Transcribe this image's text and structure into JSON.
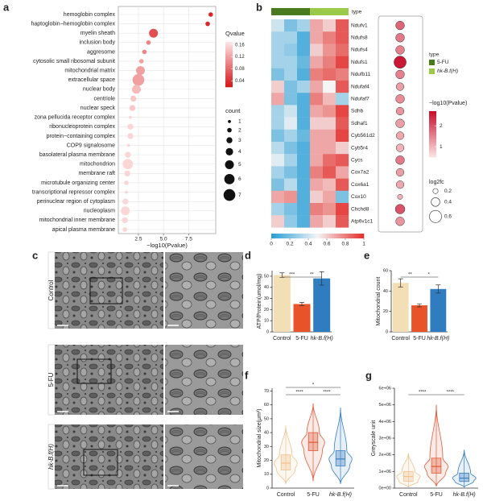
{
  "chart_data": [
    {
      "panel": "a",
      "type": "dot",
      "categories": [
        "hemoglobin complex",
        "haptoglobin−hemoglobin complex",
        "myelin sheath",
        "inclusion body",
        "aggresome",
        "cytosolic small ribosomal subunit",
        "mitochondrial matrix",
        "extracellular space",
        "nuclear body",
        "centriole",
        "nuclear speck",
        "zona pellucida receptor complex",
        "ribonucleoprotein complex",
        "protein−containing complex",
        "COP9 signalosome",
        "basolateral plasma membrane",
        "mitochondrion",
        "membrane raft",
        "microtubule organizing center",
        "transcriptional repressor complex",
        "perinuclear region of cytoplasm",
        "nucleoplasm",
        "mitochondrial inner membrane",
        "apical plasma membrane"
      ],
      "label_colors": [
        "#222222",
        "#222222",
        "#222222",
        "#222222",
        "#222222",
        "#222222",
        "#e41a1c",
        "#222222",
        "#222222",
        "#222222",
        "#222222",
        "#222222",
        "#222222",
        "#222222",
        "#222222",
        "#222222",
        "#e41a1c",
        "#222222",
        "#222222",
        "#222222",
        "#222222",
        "#222222",
        "#e41a1c",
        "#222222"
      ],
      "values": [
        9.7,
        9.4,
        4.0,
        3.5,
        3.1,
        2.8,
        2.7,
        2.5,
        2.3,
        2.0,
        1.9,
        1.7,
        1.7,
        1.7,
        1.5,
        1.45,
        1.45,
        1.4,
        1.3,
        1.3,
        1.2,
        1.2,
        1.15,
        1.15
      ],
      "counts": [
        2,
        2,
        5,
        2,
        2,
        2,
        5,
        7,
        5,
        3,
        3,
        1,
        3,
        3,
        1,
        3,
        6,
        3,
        2,
        1,
        3,
        5,
        3,
        2
      ],
      "qvalues": [
        0.03,
        0.03,
        0.06,
        0.1,
        0.1,
        0.12,
        0.12,
        0.12,
        0.14,
        0.15,
        0.15,
        0.16,
        0.16,
        0.16,
        0.16,
        0.16,
        0.16,
        0.16,
        0.16,
        0.16,
        0.16,
        0.16,
        0.16,
        0.16
      ],
      "xlabel": "−log10(Pvalue)",
      "xlim": [
        0.5,
        10.2
      ],
      "xticks": [
        {
          "value": 2.5,
          "label": "2.5"
        },
        {
          "value": 5.0,
          "label": "5.0"
        },
        {
          "value": 7.5,
          "label": "7.5"
        }
      ],
      "grid": true,
      "color_legend": {
        "title": "Qvalue",
        "lim": [
          0.02,
          0.17
        ],
        "ticks": [
          0.04,
          0.08,
          0.12,
          0.16
        ],
        "colors": [
          "#d7191c",
          "#fde3e3"
        ]
      },
      "size_legend": {
        "title": "count",
        "values": [
          1,
          2,
          3,
          4,
          5,
          6,
          7
        ]
      }
    },
    {
      "panel": "b",
      "type": "heatmap",
      "rows": [
        "Ndufv1",
        "Ndufs8",
        "Ndufs4",
        "Ndufs1",
        "Ndufb11",
        "Ndufaf4",
        "Ndufaf7",
        "Sdhb",
        "Sdhaf1",
        "Cyb561d2",
        "Cyb5r4",
        "Cycs",
        "Cox7a2",
        "Cox6a1",
        "Cox10",
        "Chchd8",
        "Atp6v1c1"
      ],
      "values": [
        [
          0.4,
          0.2,
          0.3,
          0.7,
          0.6,
          0.9
        ],
        [
          0.3,
          0.3,
          0.1,
          0.7,
          0.8,
          0.9
        ],
        [
          0.3,
          0.25,
          0.1,
          0.6,
          0.75,
          0.85
        ],
        [
          0.3,
          0.3,
          0.15,
          0.7,
          0.8,
          0.95
        ],
        [
          0.2,
          0.3,
          0.1,
          0.8,
          0.85,
          0.8
        ],
        [
          0.6,
          0.2,
          0.3,
          0.7,
          0.5,
          0.9
        ],
        [
          0.7,
          0.2,
          0.1,
          0.8,
          0.65,
          0.3
        ],
        [
          0.3,
          0.4,
          0.1,
          0.7,
          0.75,
          0.95
        ],
        [
          0.3,
          0.45,
          0.1,
          0.6,
          0.6,
          0.9
        ],
        [
          0.2,
          0.3,
          0.15,
          0.7,
          0.7,
          0.95
        ],
        [
          0.35,
          0.2,
          0.1,
          0.7,
          0.7,
          0.6
        ],
        [
          0.45,
          0.3,
          0.1,
          0.7,
          0.85,
          0.9
        ],
        [
          0.3,
          0.2,
          0.1,
          0.8,
          0.9,
          0.7
        ],
        [
          0.2,
          0.35,
          0.1,
          0.7,
          0.65,
          0.9
        ],
        [
          0.7,
          0.75,
          0.1,
          0.6,
          0.7,
          0.2
        ],
        [
          0.3,
          0.2,
          0.1,
          0.8,
          0.75,
          0.95
        ],
        [
          0.6,
          0.25,
          0.1,
          0.7,
          0.6,
          0.9
        ]
      ],
      "scale": {
        "lim": [
          0,
          1
        ],
        "ticks": [
          0,
          0.2,
          0.4,
          0.6,
          0.8,
          1
        ],
        "colors": [
          "#2b9fd6",
          "#f5f5f5",
          "#e3322f"
        ]
      },
      "annotation": {
        "title": "type",
        "groups": [
          "5-FU",
          "hk-B.f(H)"
        ],
        "colors": [
          "#4a7a1f",
          "#9bc94a"
        ],
        "columns": [
          0,
          0,
          0,
          1,
          1,
          1
        ]
      },
      "dots": {
        "pvalue": [
          1.8,
          1.6,
          1.5,
          2.6,
          1.5,
          1.2,
          1.4,
          1.3,
          1.2,
          1.1,
          1.0,
          1.6,
          1.2,
          1.1,
          1.0,
          2.0,
          1.3
        ],
        "log2fc": [
          0.4,
          0.4,
          0.4,
          0.6,
          0.4,
          0.35,
          0.4,
          0.35,
          0.4,
          0.35,
          0.35,
          0.4,
          0.35,
          0.35,
          0.2,
          0.45,
          0.4
        ],
        "pvalue_title": "−log10(Pvalue)",
        "pvalue_lim": [
          0.5,
          2.7
        ],
        "pvalue_ticks": [
          1,
          2
        ],
        "pvalue_colors": [
          "#fde0e0",
          "#c8102e"
        ],
        "log2fc_title": "log2fc",
        "log2fc_ticks": [
          0.2,
          0.4,
          0.6
        ]
      }
    },
    {
      "panel": "c",
      "type": "micrograph",
      "rows": [
        "Control",
        "5-FU",
        "hk-B.f(H)"
      ],
      "italic": [
        false,
        false,
        true
      ]
    },
    {
      "panel": "d",
      "type": "bar",
      "categories": [
        "Control",
        "5-FU",
        "hk-B.f(H)"
      ],
      "italic": [
        false,
        false,
        true
      ],
      "values": [
        51,
        25,
        48
      ],
      "errors": [
        2,
        1.5,
        6
      ],
      "colors": [
        "#f3dfb5",
        "#e8532a",
        "#2f7dc0"
      ],
      "ylabel": "ATP/Protein(umol/mg)",
      "ylim": [
        0,
        55
      ],
      "yticks": [
        0,
        10,
        20,
        30,
        40,
        50
      ],
      "annotations": [
        {
          "label": "***",
          "pair": [
            0,
            1
          ]
        },
        {
          "label": "**",
          "pair": [
            1,
            2
          ]
        }
      ]
    },
    {
      "panel": "e",
      "type": "bar",
      "categories": [
        "Control",
        "5-FU",
        "hk-B.f(H)"
      ],
      "italic": [
        false,
        false,
        true
      ],
      "values": [
        48,
        26,
        42
      ],
      "errors": [
        4,
        1.5,
        4
      ],
      "colors": [
        "#f3dfb5",
        "#e8532a",
        "#2f7dc0"
      ],
      "ylabel": "Mitochondrial count",
      "ylim": [
        0,
        60
      ],
      "yticks": [
        0,
        20,
        40,
        60
      ],
      "annotations": [
        {
          "label": "**",
          "pair": [
            0,
            1
          ]
        },
        {
          "label": "*",
          "pair": [
            1,
            2
          ]
        }
      ]
    },
    {
      "panel": "f",
      "type": "violin",
      "categories": [
        "Control",
        "5-FU",
        "hk-B.f(H)"
      ],
      "italic": [
        false,
        false,
        true
      ],
      "stats": [
        {
          "min": 3,
          "q1": 13,
          "median": 18,
          "q3": 24,
          "max": 45
        },
        {
          "min": 5,
          "q1": 27,
          "median": 33,
          "q3": 40,
          "max": 61
        },
        {
          "min": 3,
          "q1": 16,
          "median": 21,
          "q3": 27,
          "max": 58
        }
      ],
      "colors": [
        "#efc38f",
        "#e05a3a",
        "#3a7fc0"
      ],
      "ylabel": "Mitochondrial size(μm²)",
      "ylim": [
        0,
        72
      ],
      "yticks": [
        0,
        10,
        20,
        30,
        40,
        50,
        60,
        70
      ],
      "annotations": [
        {
          "label": "*",
          "pair": [
            0,
            2
          ]
        },
        {
          "label": "****",
          "pair": [
            0,
            1
          ]
        },
        {
          "label": "****",
          "pair": [
            1,
            2
          ]
        }
      ]
    },
    {
      "panel": "g",
      "type": "violin",
      "categories": [
        "Control",
        "5-FU",
        "hk-B.f(H)"
      ],
      "italic": [
        false,
        false,
        true
      ],
      "stats": [
        {
          "min": 50000,
          "q1": 400000,
          "median": 700000,
          "q3": 1000000,
          "max": 2100000
        },
        {
          "min": 100000,
          "q1": 900000,
          "median": 1300000,
          "q3": 1800000,
          "max": 5000000
        },
        {
          "min": 50000,
          "q1": 400000,
          "median": 600000,
          "q3": 900000,
          "max": 2300000
        }
      ],
      "colors": [
        "#efc38f",
        "#e05a3a",
        "#3a7fc0"
      ],
      "ylabel": "Greyscale unit",
      "ylim": [
        0,
        6000000
      ],
      "yticks": [
        {
          "value": 0,
          "label": "0e+00"
        },
        {
          "value": 1000000,
          "label": "1e+06"
        },
        {
          "value": 2000000,
          "label": "2e+06"
        },
        {
          "value": 3000000,
          "label": "3e+06"
        },
        {
          "value": 4000000,
          "label": "4e+06"
        },
        {
          "value": 5000000,
          "label": "5e+06"
        },
        {
          "value": 6000000,
          "label": "6e+06"
        }
      ],
      "annotations": [
        {
          "label": "****",
          "pair": [
            0,
            1
          ]
        },
        {
          "label": "****",
          "pair": [
            1,
            2
          ]
        }
      ]
    }
  ]
}
